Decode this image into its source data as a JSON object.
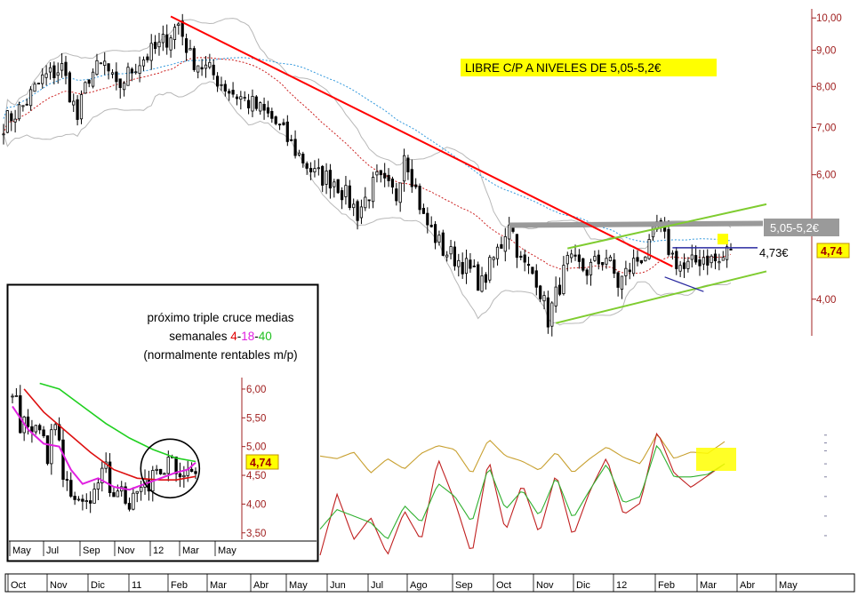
{
  "chart_data": [
    {
      "type": "candlestick",
      "panel": "main",
      "title": "",
      "y_scale": "log",
      "ylim": [
        3.55,
        10.3
      ],
      "y_ticks": [
        "10,00",
        "9,00",
        "8,00",
        "7,00",
        "6,00",
        "5,00",
        "4,00"
      ],
      "y_tick_values": [
        10,
        9,
        8,
        7,
        6,
        5,
        4
      ],
      "x_ticks": [
        "Oct",
        "Nov",
        "Dic",
        "11",
        "Feb",
        "Mar",
        "Abr",
        "May",
        "Jun",
        "Jul",
        "Ago",
        "Sep",
        "Oct",
        "Nov",
        "Dic",
        "12",
        "Feb",
        "Mar",
        "Abr",
        "May"
      ],
      "price_path": [
        [
          0,
          7.1
        ],
        [
          5,
          7.5
        ],
        [
          10,
          8.2
        ],
        [
          15,
          8.5
        ],
        [
          19,
          7.2
        ],
        [
          22,
          8.3
        ],
        [
          26,
          8.6
        ],
        [
          29,
          7.9
        ],
        [
          34,
          8.6
        ],
        [
          40,
          9.1
        ],
        [
          45,
          9.8
        ],
        [
          48,
          8.8
        ],
        [
          53,
          8.4
        ],
        [
          58,
          7.9
        ],
        [
          63,
          7.6
        ],
        [
          69,
          7.2
        ],
        [
          75,
          6.5
        ],
        [
          80,
          6.0
        ],
        [
          85,
          5.9
        ],
        [
          91,
          5.3
        ],
        [
          96,
          5.9
        ],
        [
          101,
          5.6
        ],
        [
          103,
          6.5
        ],
        [
          108,
          5.2
        ],
        [
          113,
          4.7
        ],
        [
          118,
          4.5
        ],
        [
          123,
          4.2
        ],
        [
          128,
          4.8
        ],
        [
          130,
          5.2
        ],
        [
          133,
          4.5
        ],
        [
          137,
          4.3
        ],
        [
          140,
          3.75
        ],
        [
          145,
          4.5
        ],
        [
          150,
          4.4
        ],
        [
          155,
          4.6
        ],
        [
          158,
          4.2
        ],
        [
          162,
          4.5
        ],
        [
          166,
          4.7
        ],
        [
          168,
          5.1
        ],
        [
          172,
          4.6
        ],
        [
          175,
          4.4
        ],
        [
          180,
          4.6
        ],
        [
          184,
          4.5
        ],
        [
          187,
          4.74
        ]
      ],
      "annotations": {
        "banner": "LIBRE C/P A NIVELES DE 5,05-5,2€",
        "resistance_label": "5,05-5,2€",
        "support_label": "4,73€",
        "last_price": "4,74"
      },
      "overlays": [
        "bollinger bands",
        "moving averages",
        "downtrend line",
        "ascending channel",
        "resistance zone"
      ],
      "colors": {
        "downtrend": "#ff0000",
        "channel": "#7fcc30",
        "resistance": "#9a9a9a",
        "support": "#2a2aa0",
        "banner": "#ffff00",
        "axis": "#a02020"
      }
    },
    {
      "type": "line",
      "panel": "oscillator",
      "title": "",
      "series": [
        {
          "values": [
            0.76,
            0.74,
            0.79,
            0.63,
            0.74,
            0.66,
            0.78,
            0.84,
            0.81,
            0.62,
            0.89,
            0.76,
            0.72,
            0.65,
            0.79,
            0.63,
            0.74,
            0.83,
            0.75,
            0.7,
            0.93,
            0.74,
            0.79,
            0.78,
            0.87
          ]
        },
        {
          "values": [
            0.0,
            0.47,
            0.12,
            0.29,
            0.0,
            0.34,
            0.11,
            0.74,
            0.41,
            0.0,
            0.74,
            0.18,
            0.55,
            0.16,
            0.63,
            0.14,
            0.49,
            0.75,
            0.31,
            0.4,
            0.95,
            0.63,
            0.52,
            0.61,
            0.7
          ]
        },
        {
          "values": [
            0.2,
            0.35,
            0.3,
            0.25,
            0.12,
            0.38,
            0.25,
            0.55,
            0.45,
            0.25,
            0.68,
            0.35,
            0.5,
            0.3,
            0.6,
            0.28,
            0.5,
            0.7,
            0.4,
            0.45,
            0.85,
            0.6,
            0.6,
            0.62,
            0.7
          ]
        }
      ],
      "colors": [
        "#c8a030",
        "#c02020",
        "#30b030"
      ]
    },
    {
      "type": "candlestick",
      "panel": "inset",
      "title": "",
      "y_scale": "linear",
      "ylim": [
        3.45,
        6.2
      ],
      "y_ticks": [
        "6,00",
        "5,50",
        "5,00",
        "4,50",
        "4,00",
        "3,50"
      ],
      "y_tick_values": [
        6.0,
        5.5,
        5.0,
        4.5,
        4.0,
        3.5
      ],
      "x_ticks": [
        "May",
        "Jul",
        "Sep",
        "Nov",
        "12",
        "Mar",
        "May"
      ],
      "annotation_text": [
        "próximo triple cruce medias",
        "semanales ",
        "4",
        "-",
        "18",
        "-",
        "40",
        "(normalmente rentables m/p)"
      ],
      "last_price": "4,74",
      "price_path": [
        [
          0,
          5.85
        ],
        [
          3,
          5.3
        ],
        [
          6,
          5.2
        ],
        [
          9,
          4.9
        ],
        [
          11,
          5.45
        ],
        [
          13,
          4.6
        ],
        [
          16,
          4.15
        ],
        [
          19,
          4.1
        ],
        [
          22,
          4.4
        ],
        [
          24,
          4.6
        ],
        [
          26,
          4.15
        ],
        [
          28,
          4.25
        ],
        [
          30,
          4.05
        ],
        [
          32,
          4.4
        ],
        [
          35,
          4.35
        ],
        [
          38,
          4.5
        ],
        [
          40,
          4.85
        ],
        [
          43,
          4.5
        ],
        [
          45,
          4.65
        ],
        [
          47,
          4.74
        ]
      ],
      "ma_4": [
        [
          0,
          5.7
        ],
        [
          4,
          5.3
        ],
        [
          8,
          5.05
        ],
        [
          12,
          5.0
        ],
        [
          15,
          4.6
        ],
        [
          18,
          4.35
        ],
        [
          22,
          4.45
        ],
        [
          26,
          4.3
        ],
        [
          30,
          4.25
        ],
        [
          34,
          4.35
        ],
        [
          38,
          4.45
        ],
        [
          42,
          4.55
        ],
        [
          45,
          4.6
        ],
        [
          47,
          4.72
        ]
      ],
      "ma_18": [
        [
          3,
          6.0
        ],
        [
          8,
          5.6
        ],
        [
          14,
          5.25
        ],
        [
          20,
          4.9
        ],
        [
          26,
          4.6
        ],
        [
          32,
          4.45
        ],
        [
          38,
          4.42
        ],
        [
          42,
          4.42
        ],
        [
          47,
          4.48
        ]
      ],
      "ma_40": [
        [
          7,
          6.1
        ],
        [
          12,
          6.0
        ],
        [
          18,
          5.7
        ],
        [
          24,
          5.4
        ],
        [
          30,
          5.15
        ],
        [
          36,
          4.95
        ],
        [
          42,
          4.8
        ],
        [
          47,
          4.74
        ]
      ],
      "colors": {
        "ma_4": "#e020e0",
        "ma_18": "#dd1010",
        "ma_40": "#20d020",
        "label_4": "#e00000",
        "label_18": "#e020e0",
        "label_40": "#20c020"
      }
    }
  ]
}
